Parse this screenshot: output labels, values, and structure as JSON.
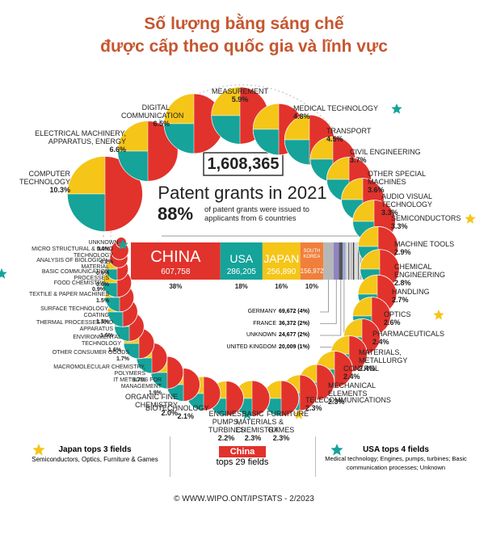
{
  "header": {
    "title_line1": "Số lượng bằng sáng chế",
    "title_line2": "được cấp theo quốc gia và lĩnh vực"
  },
  "total": {
    "value": 1608365,
    "label": "1,608,365"
  },
  "headline": "Patent grants in 2021",
  "share": {
    "value": "88%",
    "text": "of patent grants were issued to applicants from 6 countries"
  },
  "countries": [
    {
      "name": "CHINA",
      "value": 607758,
      "value_label": "607,758",
      "pct": "38%",
      "color": "#e2322c"
    },
    {
      "name": "USA",
      "value": 286205,
      "value_label": "286,205",
      "pct": "18%",
      "color": "#15a39a"
    },
    {
      "name": "JAPAN",
      "value": 256890,
      "value_label": "256,890",
      "pct": "16%",
      "color": "#f5c518"
    },
    {
      "name": "SOUTH KOREA",
      "value": 156972,
      "value_label": "156,972",
      "pct": "10%",
      "color": "#f07f3c"
    }
  ],
  "minor_countries": [
    {
      "name": "GERMANY",
      "value": 69672,
      "label": "69,672 (4%)",
      "color": "#b7b7b7"
    },
    {
      "name": "FRANCE",
      "value": 36372,
      "label": "36,372 (2%)",
      "color": "#8e84c2"
    },
    {
      "name": "UNKNOWN",
      "value": 24677,
      "label": "24,677 (2%)",
      "color": "#555555"
    },
    {
      "name": "UNITED KINGDOM",
      "value": 20009,
      "label": "20,009 (1%)",
      "color": "#9aa7d6"
    }
  ],
  "fields": [
    {
      "name": "COMPUTER TECHNOLOGY",
      "share": 10.3,
      "share_label": "10.3%"
    },
    {
      "name": "ELECTRICAL MACHINERY, APPARATUS, ENERGY",
      "share": 6.6,
      "share_label": "6.6%"
    },
    {
      "name": "DIGITAL COMMUNICATION",
      "share": 6.5,
      "share_label": "6.5%"
    },
    {
      "name": "MEASUREMENT",
      "share": 5.9,
      "share_label": "5.9%"
    },
    {
      "name": "MEDICAL TECHNOLOGY",
      "share": 4.8,
      "share_label": "4.8%",
      "star": true
    },
    {
      "name": "TRANSPORT",
      "share": 4.5,
      "share_label": "4.5%"
    },
    {
      "name": "CIVIL ENGINEERING",
      "share": 3.7,
      "share_label": "3.7%"
    },
    {
      "name": "OTHER SPECIAL MACHINES",
      "share": 3.6,
      "share_label": "3.6%"
    },
    {
      "name": "AUDIO VISUAL TECHNOLOGY",
      "share": 3.3,
      "share_label": "3.3%"
    },
    {
      "name": "SEMICONDUCTORS",
      "share": 3.3,
      "share_label": "3.3%",
      "star": true
    },
    {
      "name": "MACHINE TOOLS",
      "share": 2.9,
      "share_label": "2.9%"
    },
    {
      "name": "CHEMICAL ENGINEERING",
      "share": 2.8,
      "share_label": "2.8%"
    },
    {
      "name": "HANDLING",
      "share": 2.7,
      "share_label": "2.7%"
    },
    {
      "name": "OPTICS",
      "share": 2.6,
      "share_label": "2.6%",
      "star": true
    },
    {
      "name": "PHARMACEUTICALS",
      "share": 2.4,
      "share_label": "2.4%"
    },
    {
      "name": "MATERIALS, METALLURGY",
      "share": 2.4,
      "share_label": "2.4%"
    },
    {
      "name": "CONTROL",
      "share": 2.4,
      "share_label": "2.4%"
    },
    {
      "name": "MECHANICAL ELEMENTS",
      "share": 2.3,
      "share_label": "2.3%"
    },
    {
      "name": "TELECOMMUNICATIONS",
      "share": 2.3,
      "share_label": "2.3%"
    },
    {
      "name": "FURNITURE & GAMES",
      "share": 2.3,
      "share_label": "2.3%",
      "star": true
    },
    {
      "name": "BASIC MATERIALS CHEMISTRY",
      "share": 2.3,
      "share_label": "2.3%"
    },
    {
      "name": "ENGINES, PUMPS, TURBINES",
      "share": 2.2,
      "share_label": "2.2%",
      "star": true
    },
    {
      "name": "BIOTECHNOLOGY",
      "share": 2.1,
      "share_label": "2.1%"
    },
    {
      "name": "ORGANIC FINE CHEMISTRY",
      "share": 2.0,
      "share_label": "2.0%"
    },
    {
      "name": "IT METHODS FOR MANAGEMENT",
      "share": 1.9,
      "share_label": "1.9%"
    },
    {
      "name": "MACROMOLECULAR CHEMISTRY, POLYMERS",
      "share": 1.7,
      "share_label": "1.7%"
    },
    {
      "name": "OTHER CONSUMER GOODS",
      "share": 1.7,
      "share_label": "1.7%"
    },
    {
      "name": "ENVIRONMENTAL TECHNOLOGY",
      "share": 1.6,
      "share_label": "1.6%"
    },
    {
      "name": "THERMAL PROCESSES AND APPARATUS",
      "share": 1.6,
      "share_label": "1.6%"
    },
    {
      "name": "SURFACE TECHNOLOGY, COATING",
      "share": 1.5,
      "share_label": "1.5%"
    },
    {
      "name": "TEXTILE & PAPER MACHINES",
      "share": 1.5,
      "share_label": "1.5%"
    },
    {
      "name": "FOOD CHEMISTRY",
      "share": 0.9,
      "share_label": "0.9%"
    },
    {
      "name": "BASIC COMMUNICATION PROCESSES",
      "share": 0.6,
      "share_label": "0.6%",
      "star": true
    },
    {
      "name": "ANALYSIS OF BIOLOGICAL MATERIAL",
      "share": 0.6,
      "share_label": "0.6%"
    },
    {
      "name": "MICRO STRUCTURAL & NANO TECHNOLOGY",
      "share": 0.2,
      "share_label": "0.2%"
    },
    {
      "name": "UNKNOWN",
      "share": 0.0,
      "share_label": "0.0%",
      "star": true
    }
  ],
  "footer": {
    "japan": {
      "title": "Japan tops 3 fields",
      "text": "Semiconductors, Optics, Furniture & Games"
    },
    "china": {
      "title": "China",
      "text": "tops 29 fields"
    },
    "usa": {
      "title": "USA tops 4 fields",
      "text": "Medical technology; Engines, pumps, turbines; Basic communication processes; Unknown"
    }
  },
  "source": "© WWW.WIPO.ONT/IPSTATS - 2/2023"
}
